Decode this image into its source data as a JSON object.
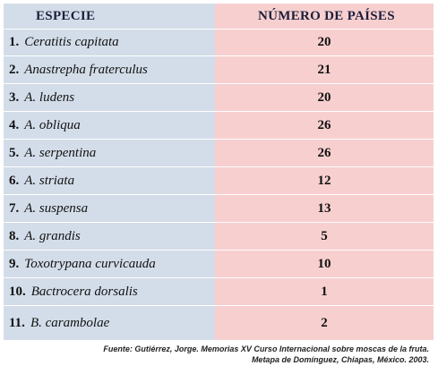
{
  "header": {
    "species": "ESPECIE",
    "countries": "NÚMERO  DE  PAÍSES"
  },
  "rows": [
    {
      "num": "1.",
      "species": "Ceratitis  capitata",
      "count": "20"
    },
    {
      "num": "2.",
      "species": "Anastrepha fraterculus",
      "count": "21"
    },
    {
      "num": "3.",
      "species": "A. ludens",
      "count": "20"
    },
    {
      "num": "4.",
      "species": "A.  obliqua",
      "count": "26"
    },
    {
      "num": "5.",
      "species": "A.  serpentina",
      "count": "26"
    },
    {
      "num": "6.",
      "species": "A.  striata",
      "count": "12"
    },
    {
      "num": "7.",
      "species": "A.  suspensa",
      "count": "13"
    },
    {
      "num": "8.",
      "species": "A.  grandis",
      "count": "5"
    },
    {
      "num": "9.",
      "species": "Toxotrypana curvicauda",
      "count": "10"
    },
    {
      "num": "10.",
      "species": "Bactrocera dorsalis",
      "count": "1"
    },
    {
      "num": "11.",
      "species": "B.  carambolae",
      "count": "2"
    }
  ],
  "footer": {
    "line1": "Fuente: Gutiérrez, Jorge. Memorias XV Curso Internacional sobre moscas de la fruta.",
    "line2": "Metapa de Domínguez, Chiapas, México.  2003."
  },
  "colors": {
    "left_bg": "#d3dde9",
    "right_bg": "#f7cfcf",
    "header_text": "#1b1f3a"
  }
}
